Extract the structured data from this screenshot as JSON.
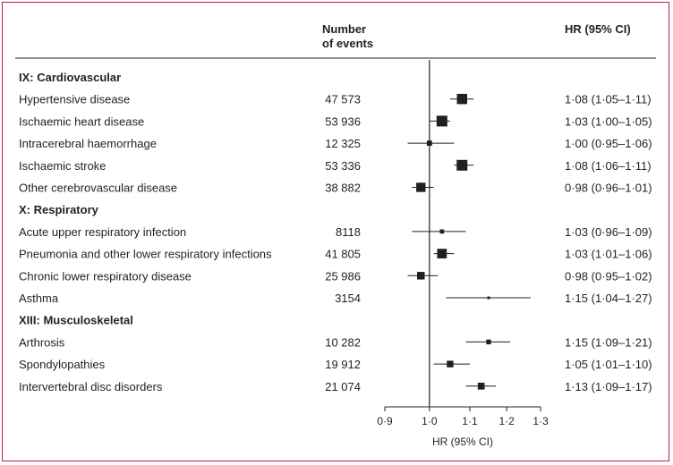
{
  "headers": {
    "events_line1": "Number",
    "events_line2": "of events",
    "hr": "HR (95% CI)"
  },
  "chart_data": {
    "type": "forest",
    "xlabel": "HR (95% CI)",
    "xlim": [
      0.9,
      1.3
    ],
    "xscale": "log",
    "ticks": [
      0.9,
      1.0,
      1.1,
      1.2,
      1.3
    ],
    "tick_labels": [
      "0·9",
      "1·0",
      "1·1",
      "1·2",
      "1·3"
    ],
    "reference_line": 1.0,
    "rows": [
      {
        "kind": "group",
        "label": "IX: Cardiovascular"
      },
      {
        "kind": "item",
        "label": "Hypertensive disease",
        "events": "47 573",
        "hr": 1.08,
        "lo": 1.05,
        "hi": 1.11,
        "hr_text": "1·08 (1·05–1·11)"
      },
      {
        "kind": "item",
        "label": "Ischaemic heart disease",
        "events": "53 936",
        "hr": 1.03,
        "lo": 1.0,
        "hi": 1.05,
        "hr_text": "1·03 (1·00–1·05)"
      },
      {
        "kind": "item",
        "label": "Intracerebral haemorrhage",
        "events": "12 325",
        "hr": 1.0,
        "lo": 0.95,
        "hi": 1.06,
        "hr_text": "1·00 (0·95–1·06)"
      },
      {
        "kind": "item",
        "label": "Ischaemic stroke",
        "events": "53 336",
        "hr": 1.08,
        "lo": 1.06,
        "hi": 1.11,
        "hr_text": "1·08 (1·06–1·11)"
      },
      {
        "kind": "item",
        "label": "Other cerebrovascular disease",
        "events": "38 882",
        "hr": 0.98,
        "lo": 0.96,
        "hi": 1.01,
        "hr_text": "0·98 (0·96–1·01)"
      },
      {
        "kind": "group",
        "label": "X: Respiratory"
      },
      {
        "kind": "item",
        "label": "Acute upper respiratory infection",
        "events": "8118",
        "hr": 1.03,
        "lo": 0.96,
        "hi": 1.09,
        "hr_text": "1·03 (0·96–1·09)"
      },
      {
        "kind": "item",
        "label": "Pneumonia and other lower respiratory infections",
        "events": "41 805",
        "hr": 1.03,
        "lo": 1.01,
        "hi": 1.06,
        "hr_text": "1·03 (1·01–1·06)"
      },
      {
        "kind": "item",
        "label": "Chronic lower respiratory disease",
        "events": "25 986",
        "hr": 0.98,
        "lo": 0.95,
        "hi": 1.02,
        "hr_text": "0·98 (0·95–1·02)"
      },
      {
        "kind": "item",
        "label": "Asthma",
        "events": "3154",
        "hr": 1.15,
        "lo": 1.04,
        "hi": 1.27,
        "hr_text": "1·15 (1·04–1·27)"
      },
      {
        "kind": "group",
        "label": "XIII: Musculoskeletal"
      },
      {
        "kind": "item",
        "label": "Arthrosis",
        "events": "10 282",
        "hr": 1.15,
        "lo": 1.09,
        "hi": 1.21,
        "hr_text": "1·15 (1·09–1·21)"
      },
      {
        "kind": "item",
        "label": "Spondylopathies",
        "events": "19 912",
        "hr": 1.05,
        "lo": 1.01,
        "hi": 1.1,
        "hr_text": "1·05 (1·01–1·10)"
      },
      {
        "kind": "item",
        "label": "Intervertebral disc disorders",
        "events": "21 074",
        "hr": 1.13,
        "lo": 1.09,
        "hi": 1.17,
        "hr_text": "1·13 (1·09–1·17)"
      }
    ]
  }
}
